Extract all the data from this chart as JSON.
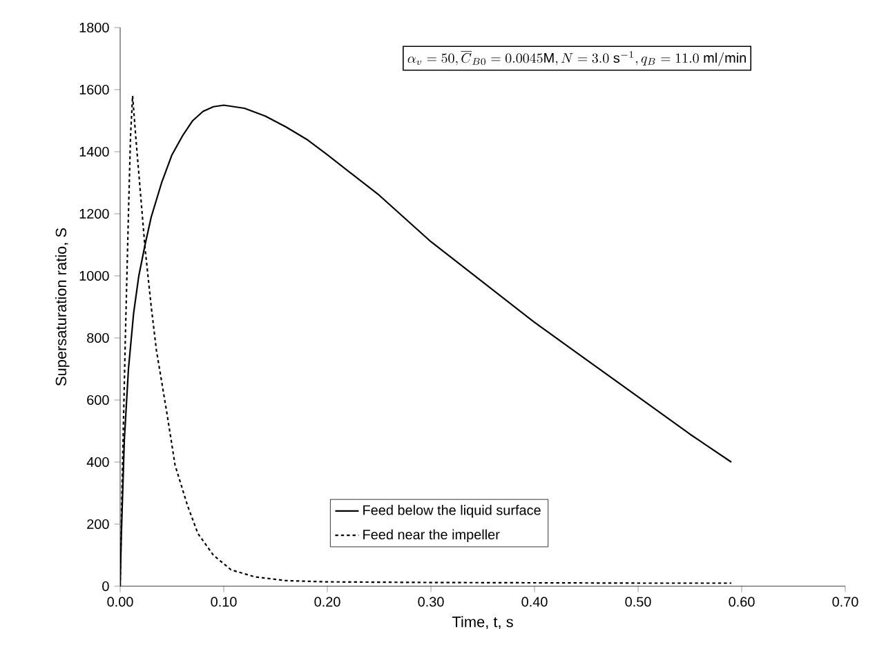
{
  "chart_data": {
    "type": "line",
    "xlabel": "Time, t, s",
    "ylabel": "Supersaturation ratio, S",
    "annotations": [
      "\\alpha_{v} = 50, \\overline{C}_{B0} = 0.0045\\mathrm{M}, N = 3.0\\ \\mathrm{s}^{-1}, q_{B} = 11.0\\ \\mathrm{ml/min}"
    ],
    "xlim": [
      0,
      0.7
    ],
    "ylim": [
      0,
      1800
    ],
    "xticks": [
      {
        "value": 0,
        "label": "0.00"
      },
      {
        "value": 0.1,
        "label": "0.10"
      },
      {
        "value": 0.2,
        "label": "0.20"
      },
      {
        "value": 0.3,
        "label": "0.30"
      },
      {
        "value": 0.4,
        "label": "0.40"
      },
      {
        "value": 0.5,
        "label": "0.50"
      },
      {
        "value": 0.6,
        "label": "0.60"
      },
      {
        "value": 0.7,
        "label": "0.70"
      }
    ],
    "yticks": [
      0,
      200,
      400,
      600,
      800,
      1000,
      1200,
      1400,
      1600,
      1800
    ],
    "legend": "bottom",
    "grid": false,
    "marker": "none",
    "series": [
      {
        "name": "Feed below the liquid surface",
        "color": "#000000",
        "line_style": "solid",
        "x": [
          0,
          0.001,
          0.004,
          0.008,
          0.013,
          0.018,
          0.024,
          0.03,
          0.04,
          0.05,
          0.06,
          0.07,
          0.08,
          0.09,
          0.1,
          0.12,
          0.14,
          0.16,
          0.18,
          0.2,
          0.25,
          0.3,
          0.35,
          0.4,
          0.45,
          0.5,
          0.55,
          0.59
        ],
        "values": [
          0,
          150,
          470,
          700,
          880,
          1000,
          1100,
          1190,
          1300,
          1390,
          1450,
          1500,
          1530,
          1545,
          1550,
          1540,
          1515,
          1480,
          1440,
          1390,
          1260,
          1110,
          980,
          850,
          730,
          610,
          490,
          400
        ]
      },
      {
        "name": "Feed near the impeller",
        "color": "#000000",
        "line_style": "dashed",
        "x": [
          0,
          0.002,
          0.005,
          0.008,
          0.01,
          0.012,
          0.015,
          0.02,
          0.024,
          0.03,
          0.035,
          0.045,
          0.053,
          0.065,
          0.075,
          0.09,
          0.107,
          0.13,
          0.16,
          0.2,
          0.3,
          0.4,
          0.5,
          0.59
        ],
        "values": [
          0,
          350,
          800,
          1200,
          1450,
          1580,
          1450,
          1250,
          1090,
          900,
          760,
          560,
          390,
          260,
          170,
          100,
          53,
          30,
          18,
          14,
          12,
          11,
          10,
          10
        ]
      }
    ]
  }
}
